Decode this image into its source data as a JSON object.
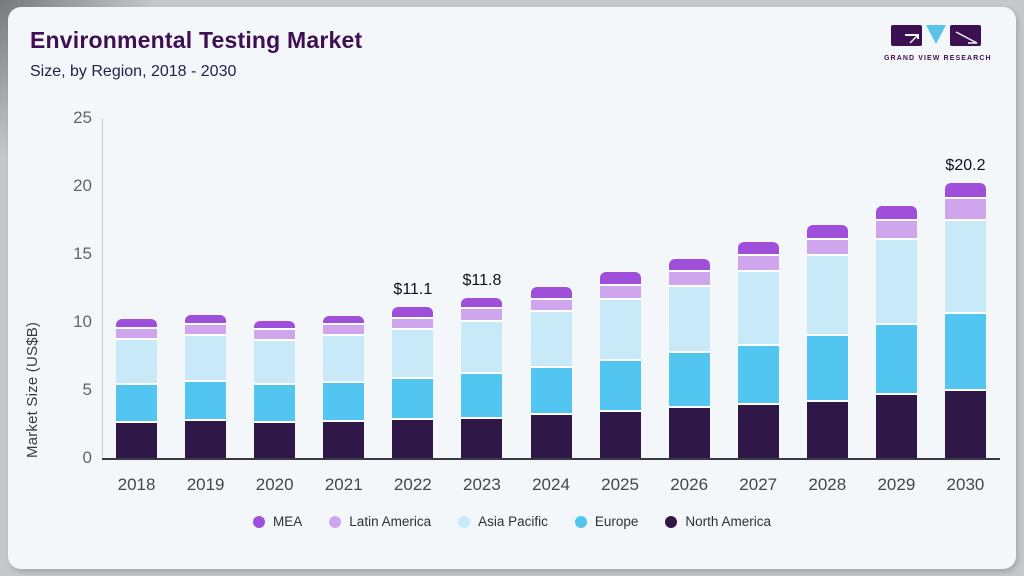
{
  "header": {
    "title": "Environmental Testing Market",
    "subtitle": "Size, by Region, 2018 - 2030",
    "logo_text": "GRAND VIEW RESEARCH"
  },
  "colors": {
    "brand_purple": "#3c1053",
    "brand_blue": "#5bc2e7",
    "card_bg": "#f4f7fa"
  },
  "chart_data": {
    "type": "bar",
    "stacked": true,
    "title": "Environmental Testing Market Size, by Region, 2018 - 2030",
    "xlabel": "",
    "ylabel": "Market Size (US$B)",
    "ylim": [
      0,
      25
    ],
    "y_ticks": [
      0,
      5,
      10,
      15,
      20,
      25
    ],
    "grid": false,
    "legend_position": "bottom",
    "categories": [
      "2018",
      "2019",
      "2020",
      "2021",
      "2022",
      "2023",
      "2024",
      "2025",
      "2026",
      "2027",
      "2028",
      "2029",
      "2030"
    ],
    "series": [
      {
        "name": "North America",
        "color": "#2f1747",
        "values": [
          2.6,
          2.7,
          2.55,
          2.65,
          2.8,
          2.9,
          3.15,
          3.35,
          3.65,
          3.9,
          4.15,
          4.6,
          4.9
        ]
      },
      {
        "name": "Europe",
        "color": "#52c5f0",
        "values": [
          2.8,
          2.9,
          2.8,
          2.9,
          3.0,
          3.3,
          3.5,
          3.8,
          4.05,
          4.35,
          4.85,
          5.15,
          5.7
        ]
      },
      {
        "name": "Asia Pacific",
        "color": "#c8e9f8",
        "values": [
          3.3,
          3.4,
          3.25,
          3.4,
          3.6,
          3.8,
          4.1,
          4.5,
          4.85,
          5.4,
          5.85,
          6.25,
          6.8
        ]
      },
      {
        "name": "Latin America",
        "color": "#cfa6ed",
        "values": [
          0.8,
          0.8,
          0.8,
          0.8,
          0.85,
          0.95,
          0.9,
          1.0,
          1.1,
          1.2,
          1.2,
          1.45,
          1.65
        ]
      },
      {
        "name": "MEA",
        "color": "#a04fdb",
        "values": [
          0.7,
          0.7,
          0.7,
          0.7,
          0.85,
          0.85,
          0.9,
          1.0,
          1.0,
          1.0,
          1.1,
          1.1,
          1.15
        ]
      }
    ],
    "totals_labels": {
      "2022": "$11.1",
      "2023": "$11.8",
      "2030": "$20.2"
    },
    "legend_order": [
      "MEA",
      "Latin America",
      "Asia Pacific",
      "Europe",
      "North America"
    ]
  }
}
